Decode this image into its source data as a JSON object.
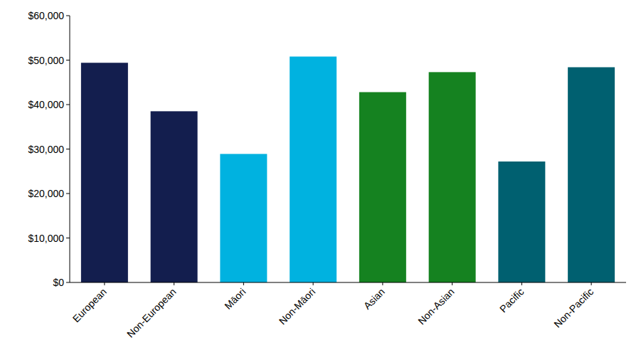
{
  "chart_data": {
    "type": "bar",
    "categories": [
      "European",
      "Non-European",
      "Māori",
      "Non-Māori",
      "Asian",
      "Non-Asian",
      "Pacific",
      "Non-Pacific"
    ],
    "values": [
      49400,
      38500,
      28900,
      50800,
      42800,
      47300,
      27200,
      48400
    ],
    "colors": [
      "#131e4e",
      "#131e4e",
      "#00b2e0",
      "#00b2e0",
      "#158220",
      "#158220",
      "#006070",
      "#006070"
    ],
    "ylim": [
      0,
      60000
    ],
    "yticks": [
      {
        "value": 0,
        "label": "$0"
      },
      {
        "value": 10000,
        "label": "$10,000"
      },
      {
        "value": 20000,
        "label": "$20,000"
      },
      {
        "value": 30000,
        "label": "$30,000"
      },
      {
        "value": 40000,
        "label": "$40,000"
      },
      {
        "value": 50000,
        "label": "$50,000"
      },
      {
        "value": 60000,
        "label": "$60,000"
      }
    ],
    "grid": false
  }
}
